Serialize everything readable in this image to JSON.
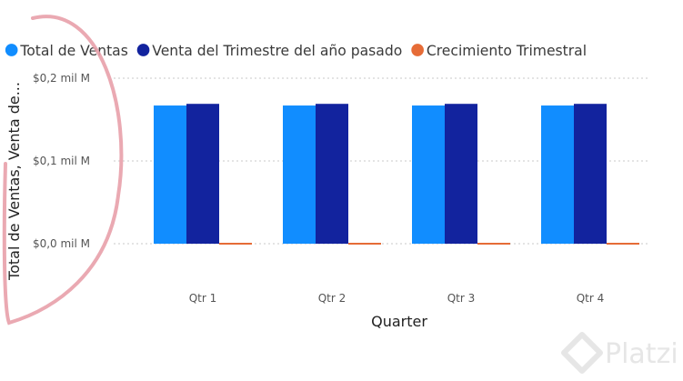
{
  "colors": {
    "total": "#118DFF",
    "prev": "#12239E",
    "growth": "#E66C37",
    "grid": "#c8c8c8",
    "annotation": "#e8a0aa",
    "watermark": "#e6e6e6"
  },
  "watermark": {
    "text": "Platzi",
    "icon": "platzi-logo-icon"
  },
  "chart_data": {
    "type": "bar",
    "title": "",
    "xlabel": "Quarter",
    "ylabel": "Total de Ventas, Venta de...",
    "categories": [
      "Qtr 1",
      "Qtr 2",
      "Qtr 3",
      "Qtr 4"
    ],
    "yticks": [
      {
        "value": 0,
        "label": "$0,0 mil M"
      },
      {
        "value": 0.1,
        "label": "$0,1 mil M"
      },
      {
        "value": 0.2,
        "label": "$0,2 mil M"
      }
    ],
    "ylim": [
      0,
      0.2
    ],
    "grid": true,
    "legend_position": "top-left",
    "series": [
      {
        "name": "Total de Ventas",
        "color_key": "total",
        "values": [
          0.167,
          0.167,
          0.167,
          0.167
        ]
      },
      {
        "name": "Venta del Trimestre del año pasado",
        "color_key": "prev",
        "values": [
          0.169,
          0.169,
          0.169,
          0.169
        ]
      },
      {
        "name": "Crecimiento Trimestral",
        "color_key": "growth",
        "values": [
          0,
          0,
          0,
          0
        ]
      }
    ]
  }
}
